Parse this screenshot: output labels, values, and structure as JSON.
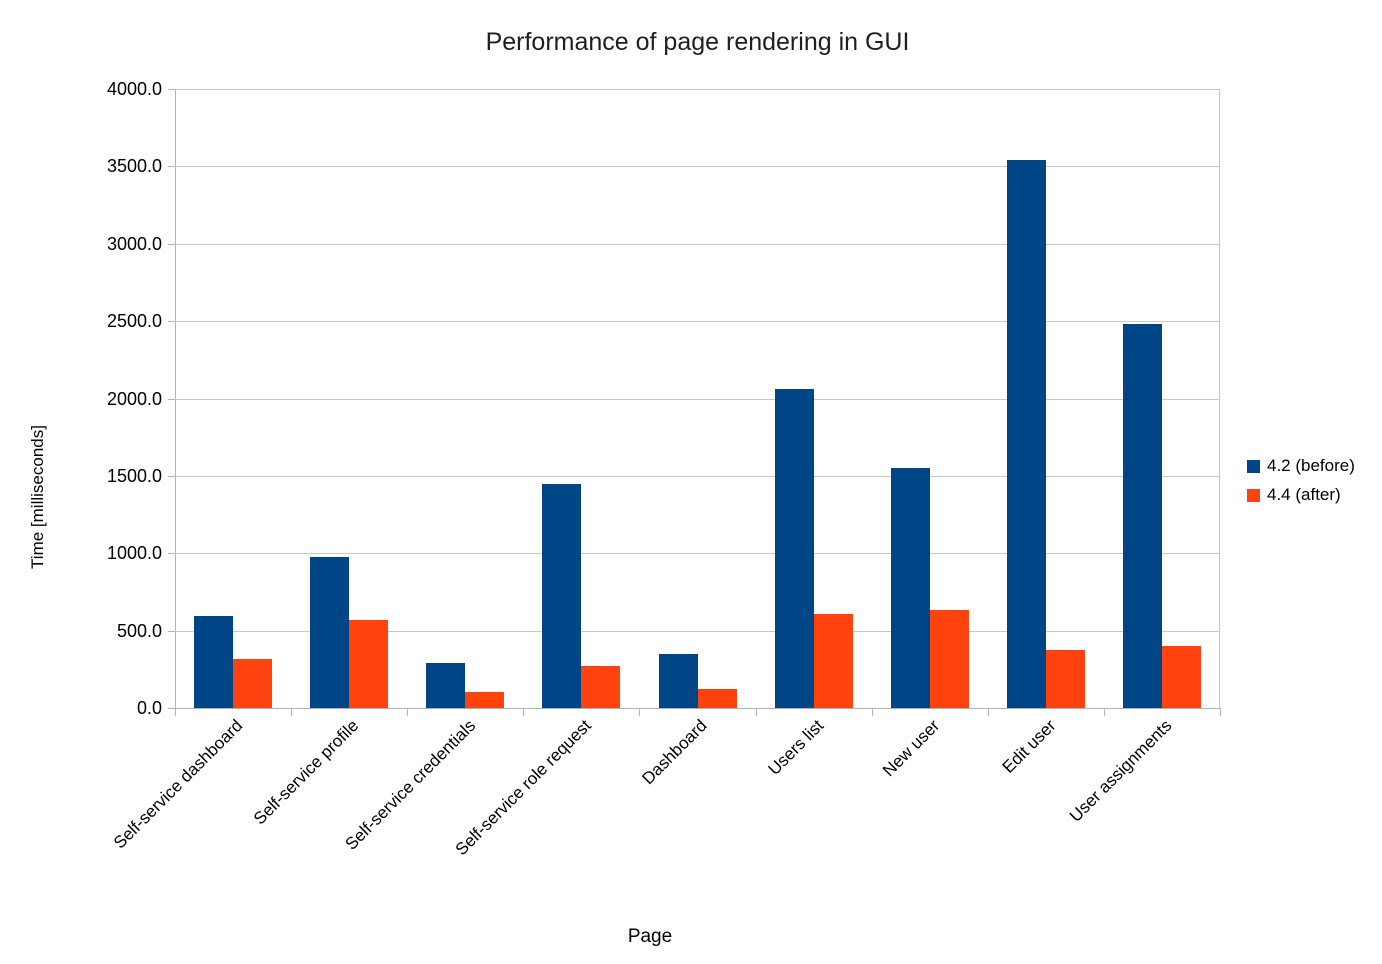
{
  "chart_data": {
    "type": "bar",
    "title": "Performance of page rendering in GUI",
    "xlabel": "Page",
    "ylabel": "Time [milliseconds]",
    "ylim": [
      0,
      4000
    ],
    "y_tick_step": 500,
    "y_ticks": [
      "4000.0",
      "3500.0",
      "3000.0",
      "2500.0",
      "2000.0",
      "1500.0",
      "1000.0",
      "500.0",
      "0.0"
    ],
    "grid": "horizontal",
    "legend_position": "right",
    "categories": [
      "Self-service dashboard",
      "Self-service profile",
      "Self-service credentials",
      "Self-service role request",
      "Dashboard",
      "Users list",
      "New user",
      "Edit user",
      "User assignments"
    ],
    "series": [
      {
        "name": "4.2 (before)",
        "color": "#004586",
        "values": [
          595,
          975,
          290,
          1450,
          350,
          2060,
          1550,
          3540,
          2480
        ]
      },
      {
        "name": "4.4 (after)",
        "color": "#FF420E",
        "values": [
          315,
          570,
          105,
          270,
          120,
          610,
          635,
          375,
          400
        ]
      }
    ]
  },
  "colors": {
    "background": "#ffffff",
    "gridline": "#c8c8c8",
    "axis": "#b3b3b3",
    "text": "#000000"
  }
}
